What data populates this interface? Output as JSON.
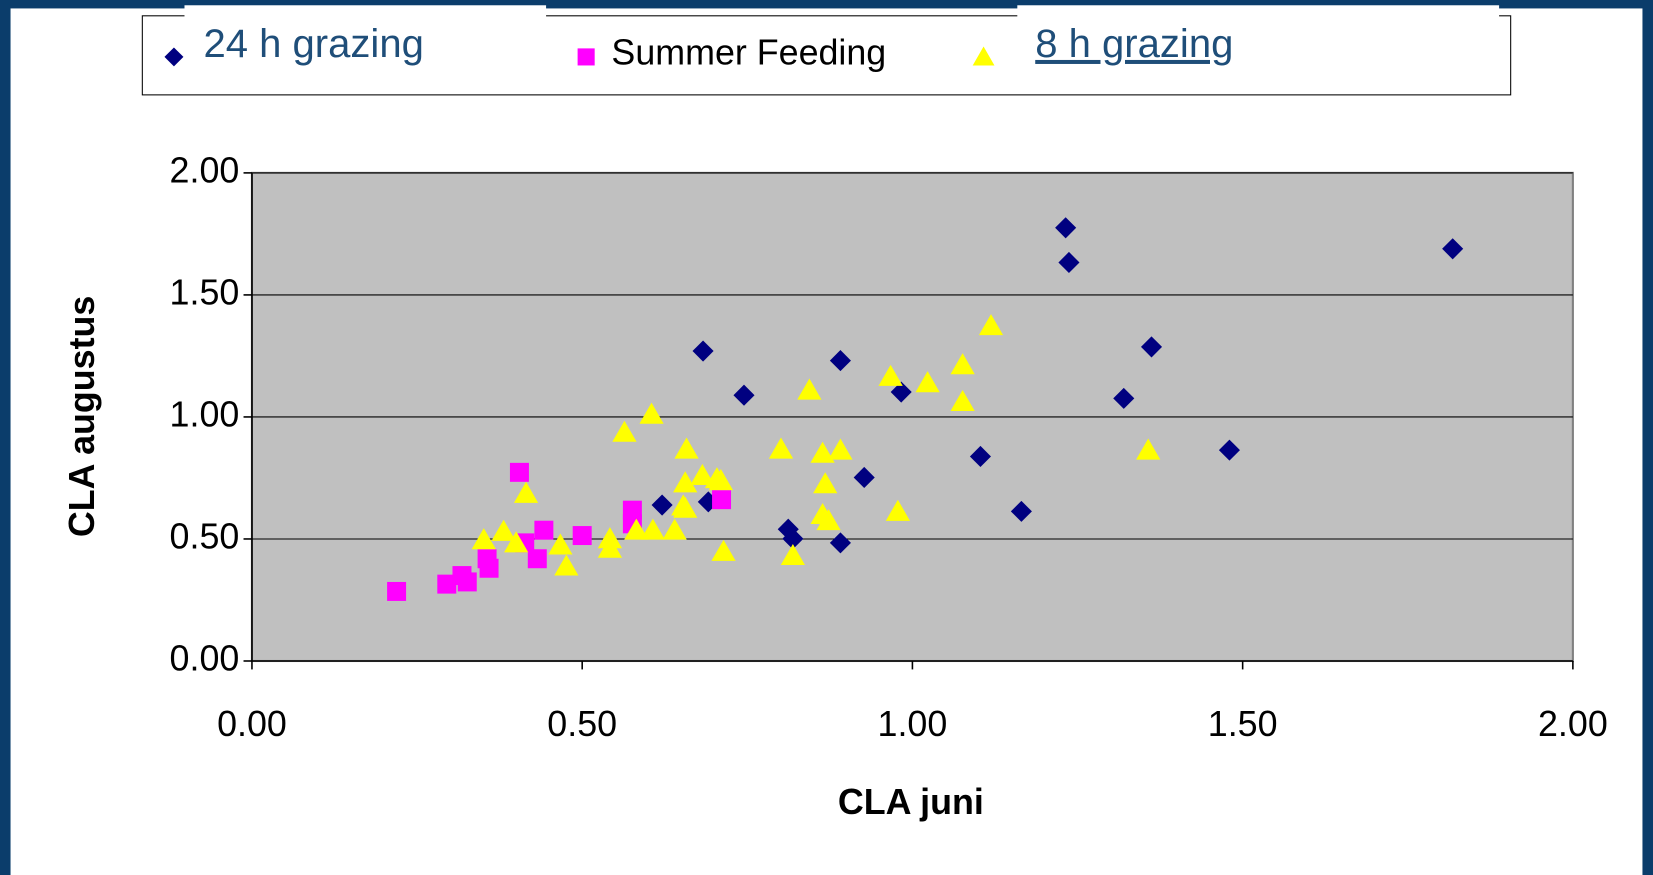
{
  "chart_data": {
    "type": "scatter",
    "xlabel": "CLA juni",
    "ylabel": "CLA augustus",
    "xlim": [
      0,
      2
    ],
    "ylim": [
      0,
      2
    ],
    "xticks": [
      {
        "value": 0,
        "label": "0.00"
      },
      {
        "value": 0.5,
        "label": "0.50"
      },
      {
        "value": 1,
        "label": "1.00"
      },
      {
        "value": 1.5,
        "label": "1.50"
      },
      {
        "value": 2,
        "label": "2.00"
      }
    ],
    "yticks": [
      {
        "value": 0,
        "label": "0.00"
      },
      {
        "value": 0.5,
        "label": "0.50"
      },
      {
        "value": 1,
        "label": "1.00"
      },
      {
        "value": 1.5,
        "label": "1.50"
      },
      {
        "value": 2,
        "label": "2.00"
      }
    ],
    "grid": true,
    "legend": "top",
    "series": [
      {
        "name": "24 h grazing",
        "color": "#000080",
        "marker": "diamond",
        "x": [
          1.232,
          1.237,
          1.818,
          0.683,
          0.891,
          1.362,
          0.745,
          0.983,
          1.32,
          1.103,
          1.48,
          0.927,
          1.165,
          0.621,
          0.691,
          0.812,
          0.819,
          0.891
        ],
        "values": [
          1.775,
          1.633,
          1.689,
          1.27,
          1.231,
          1.287,
          1.089,
          1.102,
          1.076,
          0.838,
          0.864,
          0.752,
          0.613,
          0.639,
          0.652,
          0.54,
          0.501,
          0.484
        ]
      },
      {
        "name": "Summer Feeding",
        "color": "#ff00ff",
        "marker": "square",
        "x": [
          0.219,
          0.295,
          0.318,
          0.326,
          0.356,
          0.359,
          0.405,
          0.413,
          0.432,
          0.442,
          0.5,
          0.576,
          0.576,
          0.711
        ],
        "values": [
          0.285,
          0.315,
          0.35,
          0.324,
          0.419,
          0.38,
          0.773,
          0.484,
          0.419,
          0.536,
          0.514,
          0.618,
          0.562,
          0.661
        ]
      },
      {
        "name": "8 h grazing",
        "color": "#ffff00",
        "marker": "triangle",
        "x": [
          0.351,
          0.381,
          0.4,
          0.415,
          0.467,
          0.476,
          0.542,
          0.542,
          0.564,
          0.582,
          0.605,
          0.607,
          0.64,
          0.653,
          0.656,
          0.658,
          0.656,
          0.682,
          0.704,
          0.71,
          0.714,
          0.801,
          0.819,
          0.844,
          0.864,
          0.868,
          0.864,
          0.873,
          0.891,
          0.967,
          0.978,
          1.023,
          1.076,
          1.076,
          1.119,
          1.357
        ],
        "values": [
          0.497,
          0.531,
          0.484,
          0.687,
          0.475,
          0.389,
          0.501,
          0.462,
          0.937,
          0.536,
          1.011,
          0.536,
          0.536,
          0.635,
          0.73,
          0.868,
          0.626,
          0.76,
          0.747,
          0.739,
          0.449,
          0.868,
          0.432,
          1.11,
          0.851,
          0.726,
          0.6,
          0.575,
          0.864,
          1.166,
          0.613,
          1.14,
          1.214,
          1.063,
          1.374,
          0.864
        ]
      }
    ]
  }
}
